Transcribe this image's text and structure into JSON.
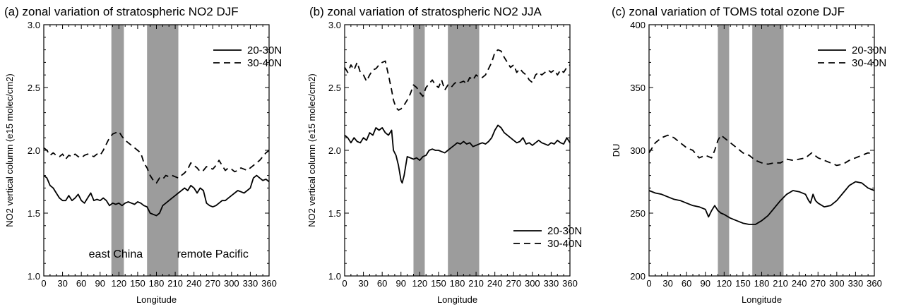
{
  "chart_data": [
    {
      "type": "line",
      "title": "(a) zonal variation of stratospheric NO2 DJF",
      "xlabel": "Longitude",
      "ylabel": "NO2 vertical column (e15 molec/cm2)",
      "xlim": [
        0,
        360
      ],
      "ylim": [
        1.0,
        3.0
      ],
      "x_ticks": [
        "0",
        "30",
        "60",
        "90",
        "120",
        "150",
        "180",
        "210",
        "240",
        "270",
        "300",
        "330",
        "360"
      ],
      "y_ticks": [
        "1.0",
        "1.5",
        "2.0",
        "2.5",
        "3.0"
      ],
      "y_tick_values": [
        1.0,
        1.5,
        2.0,
        2.5,
        3.0
      ],
      "shaded_regions": [
        [
          108,
          128
        ],
        [
          165,
          215
        ]
      ],
      "legend": "top-right",
      "annotations": [
        {
          "text": "east China",
          "x": 115,
          "y": 1.18
        },
        {
          "text": "remote Pacific",
          "x": 270,
          "y": 1.18
        }
      ],
      "series": [
        {
          "name": "20-30N",
          "style": "solid",
          "x": [
            0,
            5,
            10,
            15,
            20,
            25,
            30,
            35,
            40,
            45,
            50,
            55,
            60,
            65,
            70,
            75,
            80,
            85,
            90,
            95,
            100,
            105,
            110,
            115,
            120,
            125,
            130,
            135,
            140,
            145,
            150,
            155,
            160,
            165,
            170,
            175,
            180,
            185,
            190,
            195,
            200,
            205,
            210,
            215,
            220,
            225,
            230,
            235,
            240,
            245,
            250,
            255,
            260,
            265,
            270,
            275,
            280,
            285,
            290,
            295,
            300,
            305,
            310,
            315,
            320,
            325,
            330,
            335,
            340,
            345,
            350,
            355,
            360
          ],
          "y": [
            1.8,
            1.78,
            1.72,
            1.7,
            1.66,
            1.62,
            1.6,
            1.6,
            1.64,
            1.6,
            1.62,
            1.65,
            1.6,
            1.58,
            1.62,
            1.66,
            1.6,
            1.61,
            1.6,
            1.62,
            1.6,
            1.56,
            1.58,
            1.57,
            1.58,
            1.56,
            1.58,
            1.59,
            1.58,
            1.57,
            1.59,
            1.58,
            1.56,
            1.55,
            1.5,
            1.49,
            1.48,
            1.5,
            1.56,
            1.58,
            1.6,
            1.62,
            1.64,
            1.66,
            1.68,
            1.7,
            1.68,
            1.72,
            1.7,
            1.66,
            1.7,
            1.68,
            1.58,
            1.56,
            1.55,
            1.56,
            1.58,
            1.6,
            1.6,
            1.62,
            1.64,
            1.66,
            1.68,
            1.67,
            1.66,
            1.68,
            1.7,
            1.78,
            1.8,
            1.78,
            1.76,
            1.77,
            1.75
          ]
        },
        {
          "name": "30-40N",
          "style": "dashed",
          "x": [
            0,
            5,
            10,
            15,
            20,
            25,
            30,
            35,
            40,
            45,
            50,
            55,
            60,
            65,
            70,
            75,
            80,
            85,
            90,
            95,
            100,
            105,
            110,
            115,
            120,
            125,
            130,
            135,
            140,
            145,
            150,
            155,
            160,
            165,
            170,
            175,
            180,
            185,
            190,
            195,
            200,
            205,
            210,
            215,
            220,
            225,
            230,
            235,
            240,
            245,
            250,
            255,
            260,
            265,
            270,
            275,
            280,
            285,
            290,
            295,
            300,
            305,
            310,
            315,
            320,
            325,
            330,
            335,
            340,
            345,
            350,
            355,
            360
          ],
          "y": [
            2.02,
            2.0,
            1.96,
            1.98,
            1.96,
            1.95,
            1.97,
            1.93,
            1.96,
            1.95,
            1.97,
            1.95,
            1.94,
            1.96,
            1.97,
            1.96,
            1.95,
            1.97,
            1.96,
            2.0,
            2.05,
            2.1,
            2.13,
            2.14,
            2.15,
            2.11,
            2.08,
            2.06,
            2.04,
            2.02,
            2.0,
            1.98,
            1.9,
            1.86,
            1.8,
            1.76,
            1.74,
            1.78,
            1.77,
            1.8,
            1.79,
            1.8,
            1.79,
            1.78,
            1.8,
            1.82,
            1.85,
            1.9,
            1.88,
            1.86,
            1.83,
            1.84,
            1.87,
            1.86,
            1.85,
            1.88,
            1.92,
            1.88,
            1.84,
            1.86,
            1.85,
            1.83,
            1.84,
            1.86,
            1.85,
            1.84,
            1.86,
            1.88,
            1.9,
            1.92,
            1.95,
            1.98,
            2.0
          ]
        }
      ]
    },
    {
      "type": "line",
      "title": "(b) zonal variation of stratospheric NO2 JJA",
      "xlabel": "Longitude",
      "ylabel": "NO2 vertical column (e15 molec/cm2)",
      "xlim": [
        0,
        360
      ],
      "ylim": [
        1.0,
        3.0
      ],
      "x_ticks": [
        "0",
        "30",
        "60",
        "90",
        "120",
        "150",
        "180",
        "210",
        "240",
        "270",
        "300",
        "330",
        "360"
      ],
      "y_ticks": [
        "1.0",
        "1.5",
        "2.0",
        "2.5",
        "3.0"
      ],
      "y_tick_values": [
        1.0,
        1.5,
        2.0,
        2.5,
        3.0
      ],
      "shaded_regions": [
        [
          110,
          128
        ],
        [
          165,
          215
        ]
      ],
      "legend": "bottom-right",
      "series": [
        {
          "name": "20-30N",
          "style": "solid",
          "x": [
            0,
            5,
            10,
            15,
            20,
            25,
            30,
            35,
            40,
            45,
            50,
            55,
            60,
            65,
            70,
            75,
            78,
            82,
            86,
            90,
            92,
            95,
            100,
            105,
            110,
            115,
            120,
            125,
            130,
            135,
            140,
            145,
            150,
            155,
            160,
            165,
            170,
            175,
            180,
            185,
            190,
            195,
            200,
            205,
            210,
            215,
            220,
            225,
            230,
            235,
            240,
            245,
            250,
            255,
            260,
            265,
            270,
            275,
            280,
            285,
            290,
            295,
            300,
            305,
            310,
            315,
            320,
            325,
            330,
            335,
            340,
            345,
            350,
            355,
            360
          ],
          "y": [
            2.12,
            2.1,
            2.06,
            2.1,
            2.07,
            2.06,
            2.1,
            2.08,
            2.14,
            2.12,
            2.18,
            2.16,
            2.18,
            2.14,
            2.12,
            2.16,
            2.0,
            1.96,
            1.88,
            1.76,
            1.74,
            1.8,
            1.95,
            1.94,
            1.93,
            1.94,
            1.92,
            1.95,
            1.96,
            2.0,
            2.01,
            2.0,
            2.0,
            1.99,
            1.98,
            2.0,
            2.02,
            2.04,
            2.06,
            2.05,
            2.07,
            2.05,
            2.06,
            2.03,
            2.04,
            2.05,
            2.06,
            2.05,
            2.07,
            2.1,
            2.16,
            2.2,
            2.18,
            2.14,
            2.12,
            2.1,
            2.08,
            2.06,
            2.07,
            2.1,
            2.05,
            2.06,
            2.04,
            2.06,
            2.08,
            2.06,
            2.05,
            2.04,
            2.06,
            2.05,
            2.08,
            2.06,
            2.05,
            2.1,
            2.06
          ]
        },
        {
          "name": "30-40N",
          "style": "dashed",
          "x": [
            0,
            5,
            10,
            15,
            20,
            25,
            30,
            35,
            40,
            45,
            50,
            55,
            60,
            65,
            70,
            75,
            78,
            82,
            86,
            90,
            95,
            100,
            105,
            110,
            115,
            120,
            125,
            130,
            135,
            140,
            145,
            150,
            155,
            160,
            165,
            170,
            175,
            180,
            185,
            190,
            195,
            200,
            205,
            210,
            215,
            220,
            225,
            230,
            235,
            240,
            245,
            250,
            255,
            260,
            265,
            270,
            275,
            280,
            285,
            290,
            295,
            300,
            305,
            310,
            315,
            320,
            325,
            330,
            335,
            340,
            345,
            350,
            355,
            360
          ],
          "y": [
            2.66,
            2.62,
            2.68,
            2.64,
            2.7,
            2.62,
            2.6,
            2.55,
            2.6,
            2.64,
            2.65,
            2.68,
            2.7,
            2.71,
            2.6,
            2.48,
            2.4,
            2.34,
            2.32,
            2.33,
            2.36,
            2.4,
            2.45,
            2.52,
            2.5,
            2.46,
            2.43,
            2.5,
            2.53,
            2.56,
            2.52,
            2.5,
            2.56,
            2.48,
            2.52,
            2.5,
            2.53,
            2.55,
            2.54,
            2.55,
            2.53,
            2.58,
            2.56,
            2.6,
            2.58,
            2.58,
            2.6,
            2.65,
            2.7,
            2.78,
            2.8,
            2.79,
            2.74,
            2.7,
            2.66,
            2.68,
            2.62,
            2.65,
            2.62,
            2.6,
            2.56,
            2.54,
            2.6,
            2.62,
            2.6,
            2.62,
            2.64,
            2.62,
            2.64,
            2.6,
            2.64,
            2.62,
            2.66,
            2.68
          ]
        }
      ]
    },
    {
      "type": "line",
      "title": "(c) zonal variation of TOMS total ozone DJF",
      "xlabel": "Longitude",
      "ylabel": "DU",
      "xlim": [
        0,
        360
      ],
      "ylim": [
        200,
        400
      ],
      "x_ticks": [
        "0",
        "30",
        "60",
        "90",
        "120",
        "150",
        "180",
        "210",
        "240",
        "270",
        "300",
        "330",
        "360"
      ],
      "y_ticks": [
        "200",
        "250",
        "300",
        "350",
        "400"
      ],
      "y_tick_values": [
        200,
        250,
        300,
        350,
        400
      ],
      "shaded_regions": [
        [
          110,
          128
        ],
        [
          165,
          215
        ]
      ],
      "legend": "top-right",
      "series": [
        {
          "name": "20-30N",
          "style": "solid",
          "x": [
            0,
            10,
            20,
            30,
            40,
            50,
            60,
            70,
            80,
            90,
            95,
            100,
            105,
            110,
            115,
            120,
            130,
            140,
            150,
            160,
            170,
            180,
            190,
            200,
            210,
            220,
            230,
            240,
            250,
            255,
            258,
            262,
            266,
            270,
            280,
            290,
            300,
            310,
            320,
            330,
            340,
            350,
            360
          ],
          "y": [
            268,
            266,
            265,
            263,
            261,
            260,
            258,
            256,
            255,
            253,
            247,
            252,
            256,
            252,
            250,
            249,
            246,
            244,
            242,
            241,
            241,
            244,
            248,
            254,
            260,
            265,
            268,
            267,
            265,
            260,
            258,
            265,
            260,
            258,
            255,
            256,
            260,
            266,
            272,
            275,
            274,
            270,
            268
          ]
        },
        {
          "name": "30-40N",
          "style": "dashed",
          "x": [
            0,
            10,
            20,
            30,
            40,
            50,
            60,
            70,
            80,
            90,
            100,
            105,
            110,
            115,
            120,
            130,
            140,
            150,
            160,
            170,
            180,
            190,
            200,
            210,
            220,
            230,
            240,
            250,
            260,
            265,
            270,
            280,
            290,
            300,
            310,
            320,
            330,
            340,
            350,
            360
          ],
          "y": [
            298,
            306,
            310,
            312,
            310,
            306,
            302,
            300,
            294,
            296,
            294,
            300,
            308,
            312,
            310,
            306,
            302,
            298,
            296,
            292,
            290,
            289,
            290,
            290,
            293,
            292,
            293,
            294,
            298,
            296,
            294,
            292,
            290,
            288,
            289,
            292,
            294,
            296,
            298,
            297
          ]
        }
      ]
    }
  ]
}
